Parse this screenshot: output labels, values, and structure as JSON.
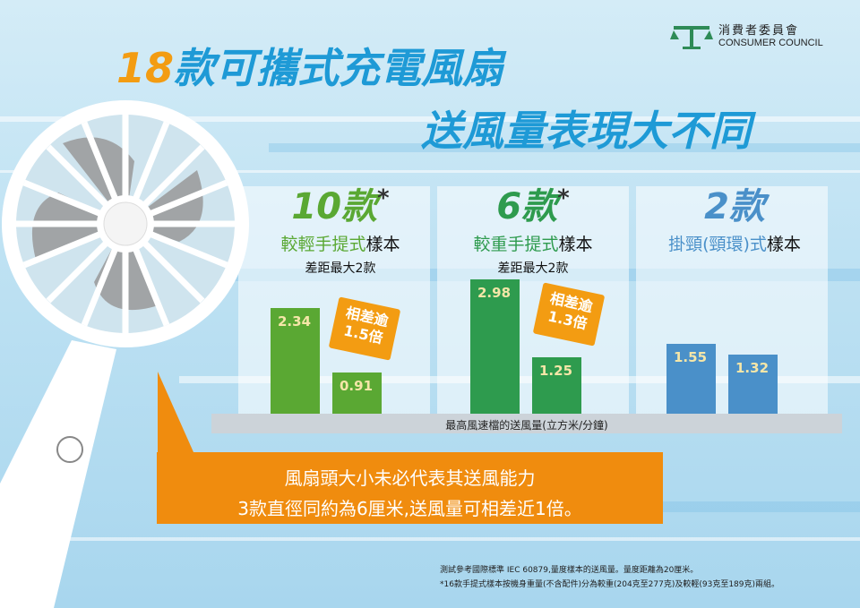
{
  "logo": {
    "zh": "消費者委員會",
    "en": "CONSUMER COUNCIL"
  },
  "title": {
    "number": "18",
    "line1_rest": "款可攜式充電風扇",
    "line2": "送風量表現大不同"
  },
  "groups": [
    {
      "count": "10款",
      "star": "*",
      "label": "較輕手提式樣本",
      "diff": "差距最大2款",
      "badge": [
        "相差逾",
        "1.5倍"
      ]
    },
    {
      "count": "6款",
      "star": "*",
      "label": "較重手提式樣本",
      "diff": "差距最大2款",
      "badge": [
        "相差逾",
        "1.3倍"
      ]
    },
    {
      "count": "2款",
      "star": "",
      "label": "掛頸(頸環)式樣本",
      "diff": "",
      "badge": []
    }
  ],
  "colors": {
    "orange": "#f39c12",
    "blue": "#1e9ad6",
    "green_light": "#5aa833",
    "green_dark": "#2e9b4e",
    "steel_blue": "#4a90c9"
  },
  "chart_data": {
    "type": "bar",
    "title": "18款可攜式充電風扇 送風量表現大不同",
    "ylabel": "最高風速檔的送風量(立方米/分鐘)",
    "ylim": [
      0,
      3.2
    ],
    "grid": false,
    "series": [
      {
        "group": "10款 較輕手提式樣本",
        "values": [
          2.34,
          0.91
        ],
        "color": "#5aa833"
      },
      {
        "group": "6款 較重手提式樣本",
        "values": [
          2.98,
          1.25
        ],
        "color": "#2e9b4e"
      },
      {
        "group": "2款 掛頸(頸環)式樣本",
        "values": [
          1.55,
          1.32
        ],
        "color": "#4a90c9"
      }
    ]
  },
  "callout": {
    "line1": "風扇頭大小未必代表其送風能力",
    "line2": "3款直徑同約為6厘米,送風量可相差近1倍。"
  },
  "notes": [
    "測試參考國際標準 IEC 60879,量度樣本的送風量。量度距離為20厘米。",
    "*16款手提式樣本按機身重量(不含配件)分為較重(204克至277克)及較輕(93克至189克)兩組。"
  ]
}
